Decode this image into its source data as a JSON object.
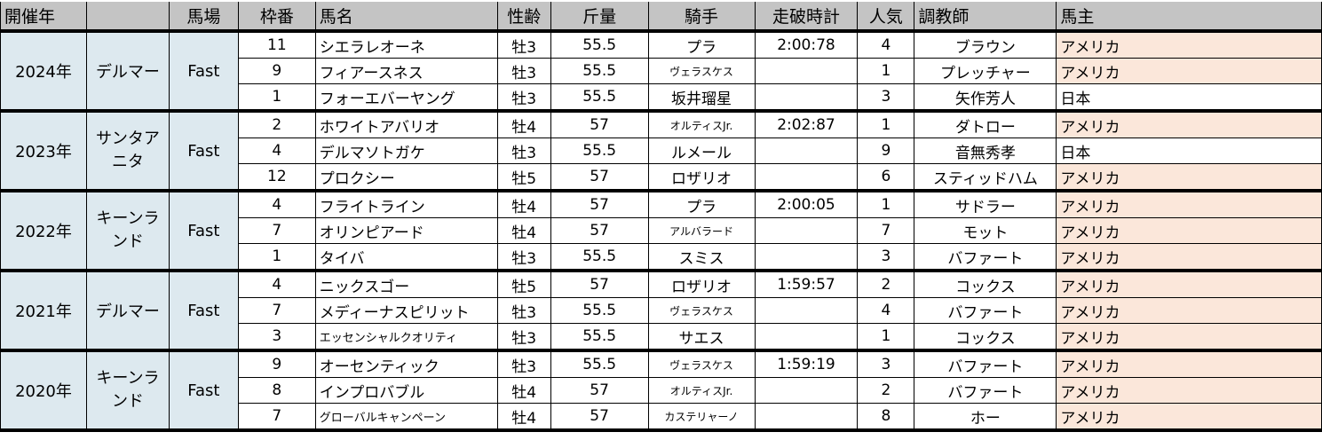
{
  "headers": [
    "開催年",
    "",
    "馬場",
    "枠番",
    "馬名",
    "性齢",
    "斤量",
    "騎手",
    "走破時計",
    "人気",
    "調教師",
    "馬主"
  ],
  "colors": {
    "header_bg": "#c4c4c4",
    "left_cells_bg": "#dde9ef",
    "owner_usa_bg": "#fbe7da"
  },
  "blocks": [
    {
      "year": "2024年",
      "venue": "デルマー",
      "track": "Fast",
      "rows": [
        {
          "gate": "11",
          "horse": "シエラレオーネ",
          "sexage": "牡3",
          "weight": "55.5",
          "jockey": "プラ",
          "time": "2:00:78",
          "pop": "4",
          "trainer": "ブラウン",
          "owner": "アメリカ"
        },
        {
          "gate": "9",
          "horse": "フィアースネス",
          "sexage": "牡3",
          "weight": "55.5",
          "jockey": "ヴェラスケス",
          "time": "",
          "pop": "1",
          "trainer": "プレッチャー",
          "owner": "アメリカ"
        },
        {
          "gate": "1",
          "horse": "フォーエバーヤング",
          "sexage": "牡3",
          "weight": "55.5",
          "jockey": "坂井瑠星",
          "time": "",
          "pop": "3",
          "trainer": "矢作芳人",
          "owner": "日本"
        }
      ]
    },
    {
      "year": "2023年",
      "venue": "サンタアニタ",
      "track": "Fast",
      "rows": [
        {
          "gate": "2",
          "horse": "ホワイトアバリオ",
          "sexage": "牡4",
          "weight": "57",
          "jockey": "オルティスJr.",
          "time": "2:02:87",
          "pop": "1",
          "trainer": "ダトロー",
          "owner": "アメリカ"
        },
        {
          "gate": "4",
          "horse": "デルマソトガケ",
          "sexage": "牡3",
          "weight": "55.5",
          "jockey": "ルメール",
          "time": "",
          "pop": "9",
          "trainer": "音無秀孝",
          "owner": "日本"
        },
        {
          "gate": "12",
          "horse": "プロクシー",
          "sexage": "牡5",
          "weight": "57",
          "jockey": "ロザリオ",
          "time": "",
          "pop": "6",
          "trainer": "スティッドハム",
          "owner": "アメリカ"
        }
      ]
    },
    {
      "year": "2022年",
      "venue": "キーンランド",
      "track": "Fast",
      "rows": [
        {
          "gate": "4",
          "horse": "フライトライン",
          "sexage": "牡4",
          "weight": "57",
          "jockey": "プラ",
          "time": "2:00:05",
          "pop": "1",
          "trainer": "サドラー",
          "owner": "アメリカ"
        },
        {
          "gate": "7",
          "horse": "オリンピアード",
          "sexage": "牡4",
          "weight": "57",
          "jockey": "アルバラード",
          "time": "",
          "pop": "7",
          "trainer": "モット",
          "owner": "アメリカ"
        },
        {
          "gate": "1",
          "horse": "タイバ",
          "sexage": "牡3",
          "weight": "55.5",
          "jockey": "スミス",
          "time": "",
          "pop": "3",
          "trainer": "バファート",
          "owner": "アメリカ"
        }
      ]
    },
    {
      "year": "2021年",
      "venue": "デルマー",
      "track": "Fast",
      "rows": [
        {
          "gate": "4",
          "horse": "ニックスゴー",
          "sexage": "牡5",
          "weight": "57",
          "jockey": "ロザリオ",
          "time": "1:59:57",
          "pop": "2",
          "trainer": "コックス",
          "owner": "アメリカ"
        },
        {
          "gate": "7",
          "horse": "メディーナスピリット",
          "sexage": "牡3",
          "weight": "55.5",
          "jockey": "ヴェラスケス",
          "time": "",
          "pop": "4",
          "trainer": "バファート",
          "owner": "アメリカ"
        },
        {
          "gate": "3",
          "horse": "エッセンシャルクオリティ",
          "sexage": "牡3",
          "weight": "55.5",
          "jockey": "サエス",
          "time": "",
          "pop": "1",
          "trainer": "コックス",
          "owner": "アメリカ"
        }
      ]
    },
    {
      "year": "2020年",
      "venue": "キーンランド",
      "track": "Fast",
      "rows": [
        {
          "gate": "9",
          "horse": "オーセンティック",
          "sexage": "牡3",
          "weight": "55.5",
          "jockey": "ヴェラスケス",
          "time": "1:59:19",
          "pop": "3",
          "trainer": "バファート",
          "owner": "アメリカ"
        },
        {
          "gate": "8",
          "horse": "インプロバブル",
          "sexage": "牡4",
          "weight": "57",
          "jockey": "オルティスJr.",
          "time": "",
          "pop": "2",
          "trainer": "バファート",
          "owner": "アメリカ"
        },
        {
          "gate": "7",
          "horse": "グローバルキャンペーン",
          "sexage": "牡4",
          "weight": "57",
          "jockey": "カステリャーノ",
          "time": "",
          "pop": "8",
          "trainer": "ホー",
          "owner": "アメリカ"
        }
      ]
    }
  ]
}
